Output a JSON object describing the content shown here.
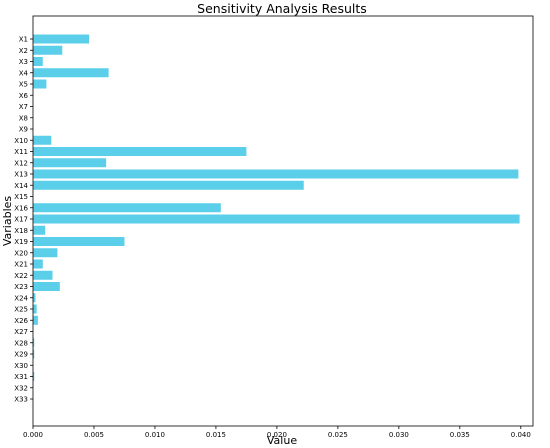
{
  "chart_data": {
    "type": "bar",
    "orientation": "horizontal",
    "title": "Sensitivity Analysis Results",
    "xlabel": "Value",
    "ylabel": "Variables",
    "categories": [
      "X1",
      "X2",
      "X3",
      "X4",
      "X5",
      "X6",
      "X7",
      "X8",
      "X9",
      "X10",
      "X11",
      "X12",
      "X13",
      "X14",
      "X15",
      "X16",
      "X17",
      "X18",
      "X19",
      "X20",
      "X21",
      "X22",
      "X23",
      "X24",
      "X25",
      "X26",
      "X27",
      "X28",
      "X29",
      "X30",
      "X31",
      "X32",
      "X33"
    ],
    "values": [
      0.0046,
      0.0024,
      0.0008,
      0.0062,
      0.0011,
      0.0,
      0.0,
      0.0,
      0.0,
      0.0015,
      0.0175,
      0.006,
      0.0398,
      0.0222,
      0.0,
      0.0154,
      0.0399,
      0.001,
      0.0075,
      0.002,
      0.0008,
      0.0016,
      0.0022,
      0.0002,
      0.0003,
      0.0004,
      0.0,
      0.0001,
      0.0001,
      0.0,
      0.0001,
      0.0,
      0.0
    ],
    "xlim": [
      0,
      0.041
    ],
    "xticks": [
      "0.000",
      "0.005",
      "0.010",
      "0.015",
      "0.020",
      "0.025",
      "0.030",
      "0.035",
      "0.040"
    ],
    "xtick_values": [
      0,
      0.005,
      0.01,
      0.015,
      0.02,
      0.025,
      0.03,
      0.035,
      0.04
    ],
    "bar_color": "#5bcfea",
    "grid": false,
    "legend": "none"
  }
}
